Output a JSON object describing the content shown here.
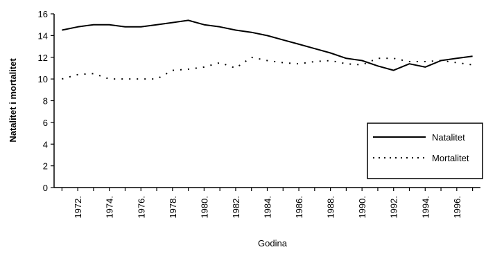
{
  "chart_data": {
    "type": "line",
    "title": "",
    "xlabel": "Godina",
    "ylabel": "Natalitet i mortalitet",
    "ylim": [
      0,
      16
    ],
    "yticks": [
      0,
      2,
      4,
      6,
      8,
      10,
      12,
      14,
      16
    ],
    "x": [
      1971,
      1972,
      1973,
      1974,
      1975,
      1976,
      1977,
      1978,
      1979,
      1980,
      1981,
      1982,
      1983,
      1984,
      1985,
      1986,
      1987,
      1988,
      1989,
      1990,
      1991,
      1992,
      1993,
      1994,
      1995,
      1996,
      1997
    ],
    "xtick_labels": [
      "1972.",
      "1974.",
      "1976.",
      "1978.",
      "1980.",
      "1982.",
      "1984.",
      "1986.",
      "1988.",
      "1990.",
      "1992.",
      "1994.",
      "1996."
    ],
    "xtick_positions": [
      1972,
      1974,
      1976,
      1978,
      1980,
      1982,
      1984,
      1986,
      1988,
      1990,
      1992,
      1994,
      1996
    ],
    "legend_position": "right",
    "series": [
      {
        "name": "Natalitet",
        "style": "solid",
        "color": "#000000",
        "values": [
          14.5,
          14.8,
          15.0,
          15.0,
          14.8,
          14.8,
          15.0,
          15.2,
          15.4,
          15.0,
          14.8,
          14.5,
          14.3,
          14.0,
          13.6,
          13.2,
          12.8,
          12.4,
          11.9,
          11.7,
          11.2,
          10.8,
          11.4,
          11.1,
          11.7,
          11.9,
          12.1
        ]
      },
      {
        "name": "Mortalitet",
        "style": "dotted",
        "color": "#000000",
        "values": [
          10.0,
          10.4,
          10.5,
          10.0,
          10.0,
          10.0,
          10.0,
          10.8,
          10.9,
          11.1,
          11.5,
          11.0,
          12.0,
          11.7,
          11.5,
          11.4,
          11.6,
          11.7,
          11.4,
          11.3,
          11.9,
          11.9,
          11.6,
          11.6,
          11.7,
          11.5,
          11.3
        ]
      }
    ]
  }
}
